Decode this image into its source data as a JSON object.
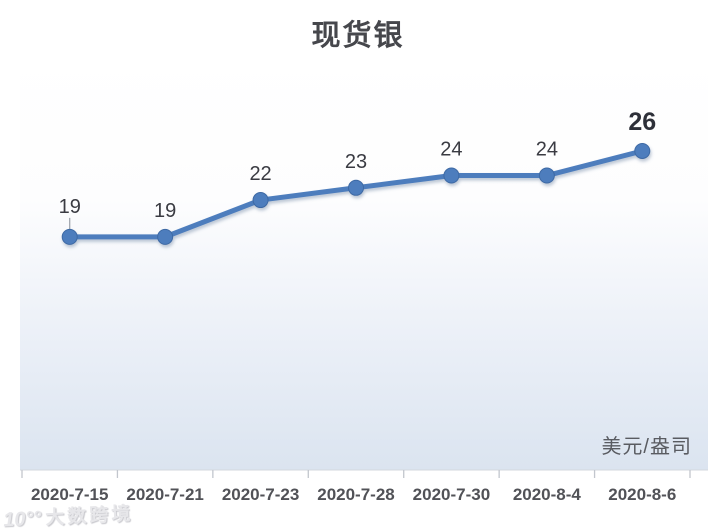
{
  "chart_data": {
    "type": "line",
    "title": "现货银",
    "unit_label": "美元/盎司",
    "categories": [
      "2020-7-15",
      "2020-7-21",
      "2020-7-23",
      "2020-7-28",
      "2020-7-30",
      "2020-8-4",
      "2020-8-6"
    ],
    "values": [
      19,
      19,
      22,
      23,
      24,
      24,
      26
    ],
    "data_labels": [
      "19",
      "19",
      "22",
      "23",
      "24",
      "24",
      "26"
    ],
    "emphasized_point_index": 6,
    "ylim": [
      0,
      34
    ],
    "grid": false,
    "legend": "none",
    "colors": {
      "line": "#4d7dbd",
      "marker": "#4d7dbd",
      "marker_edge": "#3e69a4",
      "title_text": "#46474c",
      "data_label_text": "#3a3b42",
      "emphasized_label_text": "#2e3039",
      "axis_label_text": "#515257",
      "tick": "#c2c6cd",
      "axis_line": "#d3d7de",
      "leader_line": "#9aa0a8",
      "plot_gradient_bottom": "#dbe4f0"
    }
  },
  "watermark": {
    "logo": "10°°",
    "text": "大数跨境"
  }
}
